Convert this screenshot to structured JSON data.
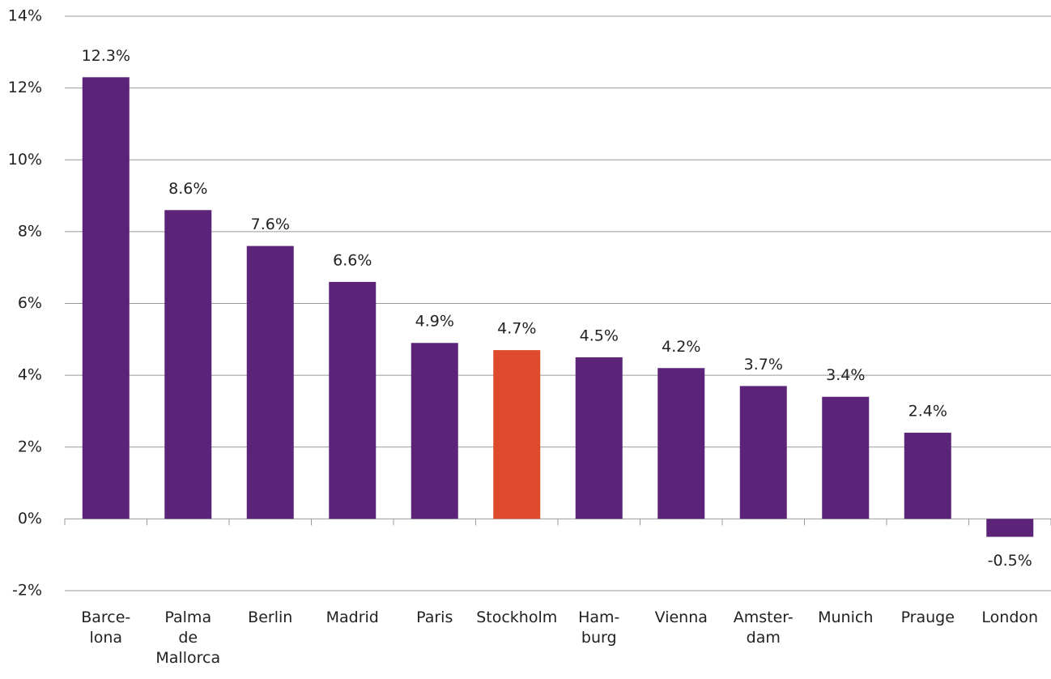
{
  "chart_data": {
    "type": "bar",
    "categories": [
      "Barce-\nlona",
      "Palma\nde\nMallorca",
      "Berlin",
      "Madrid",
      "Paris",
      "Stockholm",
      "Ham-\nburg",
      "Vienna",
      "Amster-\ndam",
      "Munich",
      "Prauge",
      "London"
    ],
    "values": [
      12.3,
      8.6,
      7.6,
      6.6,
      4.9,
      4.7,
      4.5,
      4.2,
      3.7,
      3.4,
      2.4,
      -0.5
    ],
    "value_labels": [
      "12.3%",
      "8.6%",
      "7.6%",
      "6.6%",
      "4.9%",
      "4.7%",
      "4.5%",
      "4.2%",
      "3.7%",
      "3.4%",
      "2.4%",
      "-0.5%"
    ],
    "colors": [
      "#5c2479",
      "#5c2479",
      "#5c2479",
      "#5c2479",
      "#5c2479",
      "#dd4a2c",
      "#5c2479",
      "#5c2479",
      "#5c2479",
      "#5c2479",
      "#5c2479",
      "#5c2479"
    ],
    "ylim": [
      -2,
      14
    ],
    "yticks": [
      {
        "value": -2,
        "label": "-2%"
      },
      {
        "value": 0,
        "label": "0%"
      },
      {
        "value": 2,
        "label": "2%"
      },
      {
        "value": 4,
        "label": "4%"
      },
      {
        "value": 6,
        "label": "6%"
      },
      {
        "value": 8,
        "label": "8%"
      },
      {
        "value": 10,
        "label": "10%"
      },
      {
        "value": 12,
        "label": "12%"
      },
      {
        "value": 14,
        "label": "14%"
      }
    ],
    "grid": true
  }
}
